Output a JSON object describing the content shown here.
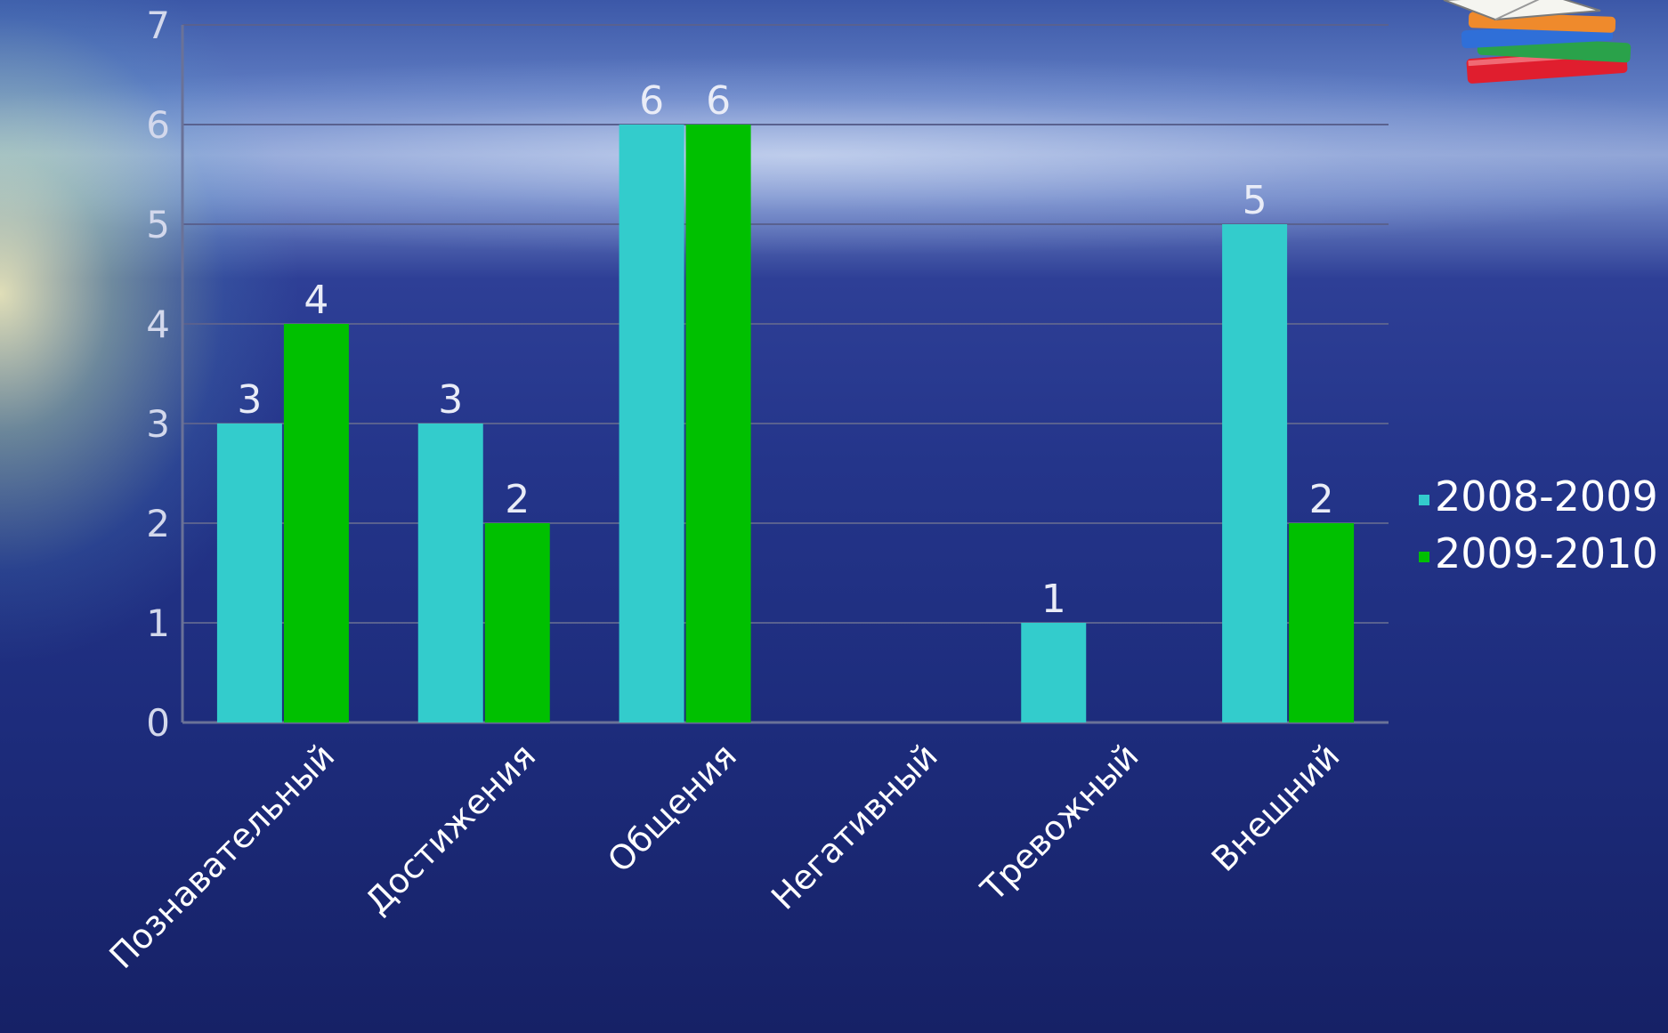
{
  "chart_data": {
    "type": "bar",
    "categories": [
      "Познавательный",
      "Достижения",
      "Общения",
      "Негативный",
      "Тревожный",
      "Внешний"
    ],
    "series": [
      {
        "name": "2008-2009",
        "values": [
          3,
          3,
          6,
          null,
          1,
          5
        ],
        "color": "#33cccc"
      },
      {
        "name": "2009-2010",
        "values": [
          4,
          2,
          6,
          null,
          null,
          2
        ],
        "color": "#00c000"
      }
    ],
    "yticks": [
      0,
      1,
      2,
      3,
      4,
      5,
      6,
      7
    ],
    "ylim": [
      0,
      7
    ],
    "grid": true,
    "legend": "right"
  },
  "decoration": {
    "icon": "books-icon"
  }
}
